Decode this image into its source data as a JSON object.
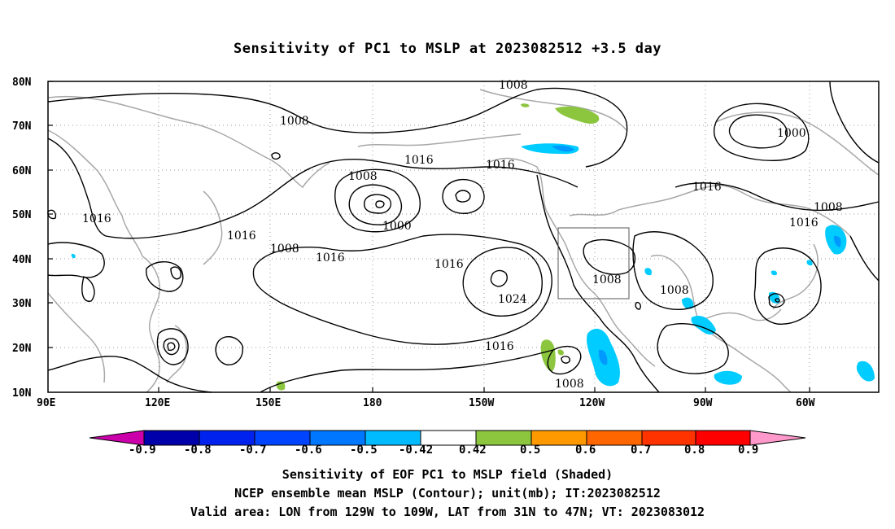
{
  "title": "Sensitivity of PC1 to MSLP at 2023082512 +3.5 day",
  "map": {
    "lat_labels": [
      "80N",
      "70N",
      "60N",
      "50N",
      "40N",
      "30N",
      "20N",
      "10N"
    ],
    "lon_labels": [
      "90E",
      "120E",
      "150E",
      "180",
      "150W",
      "120W",
      "90W",
      "60W"
    ],
    "contour_labels": [
      "1008",
      "1008",
      "1000",
      "1016",
      "1016",
      "1008",
      "1000",
      "1016",
      "1016",
      "1016",
      "1008",
      "1016",
      "1016",
      "1024",
      "1016",
      "1008",
      "1008",
      "1008",
      "1016",
      "1008"
    ],
    "valid_box": {
      "lon_from": "129W",
      "lon_to": "109W",
      "lat_from": "31N",
      "lat_to": "47N"
    },
    "colors": {
      "coast": "#a8a8a8",
      "contour": "#000000",
      "grid": "#999999",
      "neg_0_42": "#00ccff",
      "neg_0_5": "#0099ff",
      "pos_0_42": "#8cc63f"
    }
  },
  "colorbar": {
    "labels": [
      "-0.9",
      "-0.8",
      "-0.7",
      "-0.6",
      "-0.5",
      "-0.42",
      "0.42",
      "0.5",
      "0.6",
      "0.7",
      "0.8",
      "0.9"
    ],
    "colors": [
      "#cc00aa",
      "#0000aa",
      "#0022ee",
      "#0044ff",
      "#0077ff",
      "#00bbff",
      "#ffffff",
      "#8cc63f",
      "#ff9900",
      "#ff6600",
      "#ff3300",
      "#ff0000",
      "#ff99cc"
    ]
  },
  "captions": {
    "line1": "Sensitivity of EOF PC1 to MSLP field (Shaded)",
    "line2": "NCEP ensemble mean MSLP (Contour); unit(mb); IT:2023082512",
    "line3": "Valid area: LON from 129W to 109W, LAT from 31N to 47N; VT: 2023083012"
  }
}
